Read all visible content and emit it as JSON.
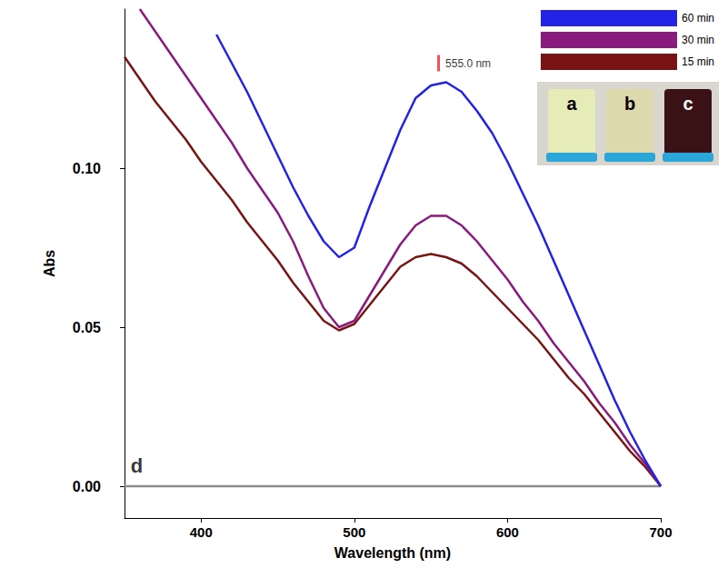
{
  "chart_data": {
    "type": "line",
    "x_label": "Wavelength (nm)",
    "y_label": "Abs",
    "x": [
      350,
      360,
      370,
      380,
      390,
      400,
      410,
      420,
      430,
      440,
      450,
      460,
      470,
      480,
      490,
      500,
      510,
      520,
      530,
      540,
      550,
      560,
      570,
      580,
      590,
      600,
      610,
      620,
      630,
      640,
      650,
      660,
      670,
      680,
      690,
      700
    ],
    "series": [
      {
        "name": "60 min",
        "color": "#2323e6",
        "values": [
          null,
          null,
          null,
          null,
          null,
          null,
          0.142,
          0.133,
          0.124,
          0.114,
          0.104,
          0.094,
          0.085,
          0.077,
          0.072,
          0.075,
          0.088,
          0.1,
          0.112,
          0.122,
          0.126,
          0.127,
          0.124,
          0.118,
          0.111,
          0.102,
          0.092,
          0.082,
          0.071,
          0.06,
          0.049,
          0.038,
          0.027,
          0.017,
          0.008,
          0
        ]
      },
      {
        "name": "30 min",
        "color": "#8b1a7e",
        "values": [
          null,
          0.15,
          0.143,
          0.136,
          0.129,
          0.122,
          0.115,
          0.108,
          0.1,
          0.093,
          0.086,
          0.077,
          0.066,
          0.056,
          0.05,
          0.052,
          0.06,
          0.068,
          0.076,
          0.082,
          0.085,
          0.085,
          0.082,
          0.077,
          0.071,
          0.065,
          0.058,
          0.052,
          0.045,
          0.039,
          0.033,
          0.026,
          0.02,
          0.013,
          0.007,
          0
        ]
      },
      {
        "name": "15 min",
        "color": "#7a1414",
        "values": [
          0.135,
          0.128,
          0.121,
          0.115,
          0.109,
          0.102,
          0.096,
          0.09,
          0.083,
          0.077,
          0.071,
          0.064,
          0.058,
          0.052,
          0.049,
          0.051,
          0.057,
          0.063,
          0.069,
          0.072,
          0.073,
          0.072,
          0.07,
          0.066,
          0.061,
          0.056,
          0.051,
          0.046,
          0.04,
          0.034,
          0.029,
          0.023,
          0.017,
          0.011,
          0.006,
          0
        ]
      },
      {
        "color": "#8c8c8c",
        "values": [
          0,
          0,
          0,
          0,
          0,
          0,
          0,
          0,
          0,
          0,
          0,
          0,
          0,
          0,
          0,
          0,
          0,
          0,
          0,
          0,
          0,
          0,
          0,
          0,
          0,
          0,
          0,
          0,
          0,
          0,
          0,
          0,
          0,
          0,
          0,
          0
        ]
      }
    ],
    "xlim": [
      350,
      700
    ],
    "xticks": [
      400,
      500,
      600,
      700
    ],
    "ylim": [
      -0.01,
      0.15
    ],
    "yticks": [
      {
        "value": 0,
        "label": "0.00"
      },
      {
        "value": 0.05,
        "label": "0.05"
      },
      {
        "value": 0.1,
        "label": "0.10"
      }
    ],
    "grid": false,
    "legend": "upper right",
    "annotations": [
      {
        "text": "555.0 nm",
        "x": 555,
        "y": 0.133,
        "color": "#e8262b",
        "marker": "bar"
      },
      {
        "text": "d",
        "x": 358,
        "y": 0
      }
    ],
    "inset_labels": [
      "a",
      "b",
      "c"
    ]
  }
}
